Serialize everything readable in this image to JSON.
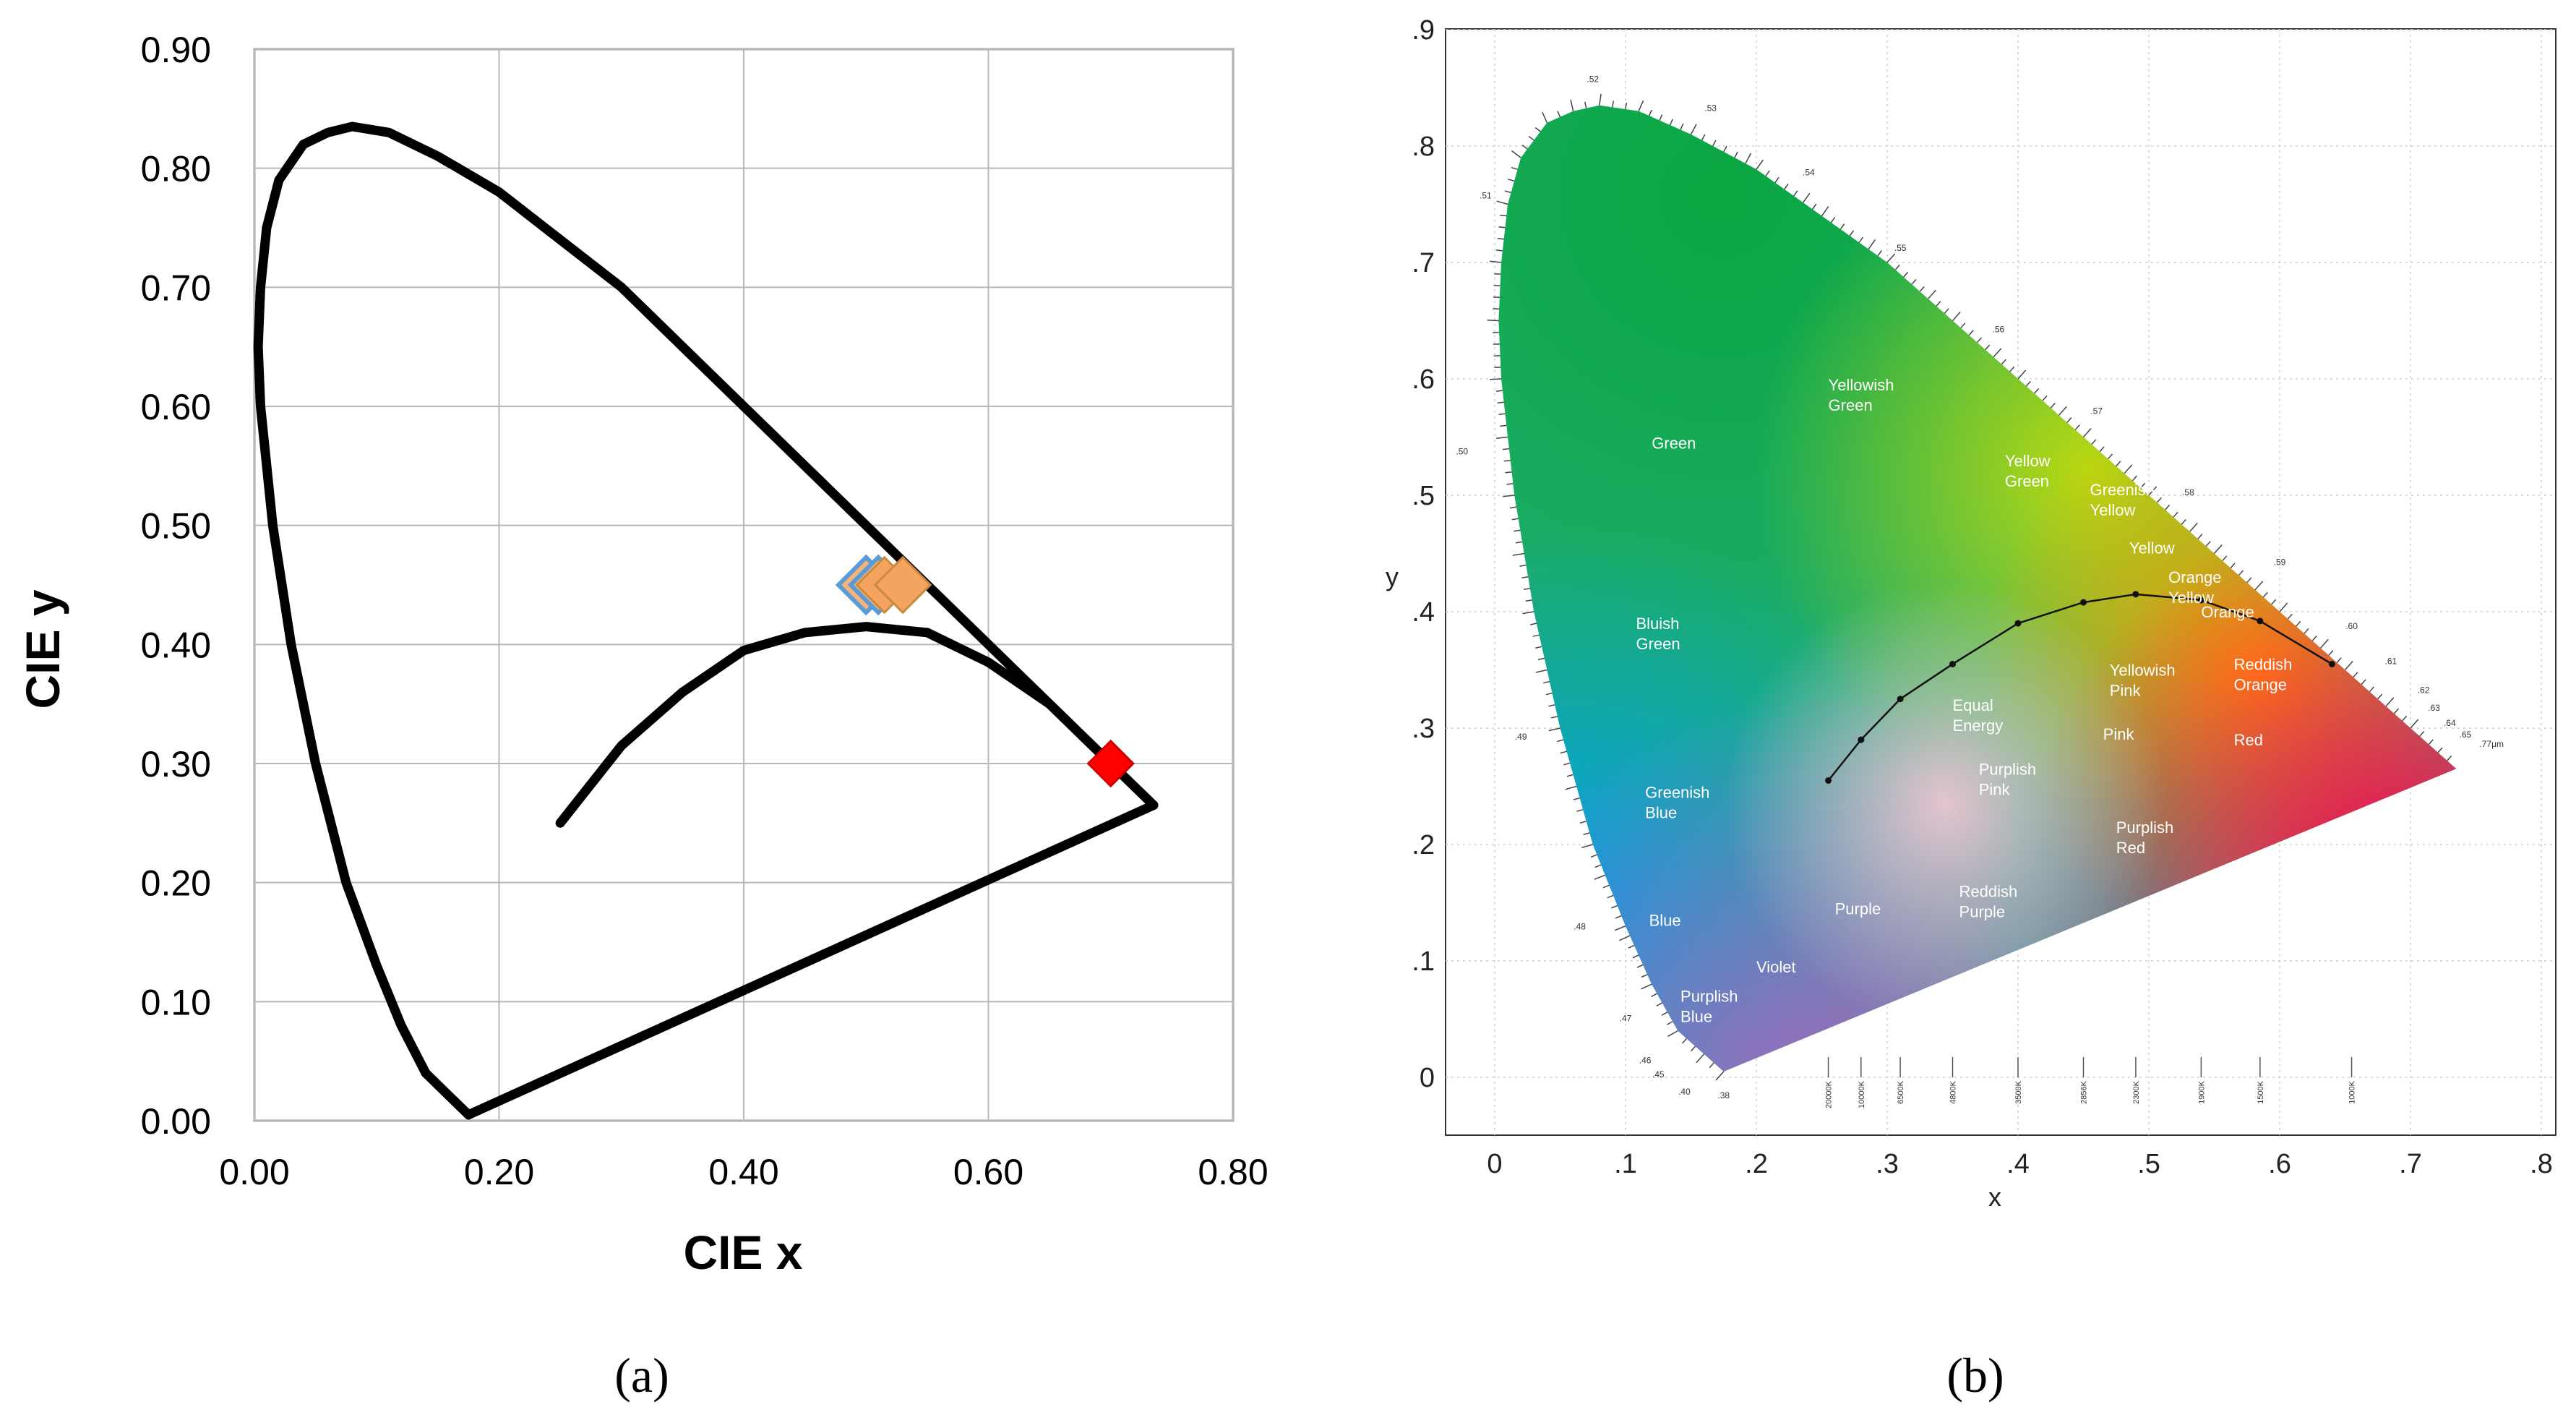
{
  "chart_data": [
    {
      "panel": "a",
      "type": "scatter",
      "xlabel": "CIE x",
      "ylabel": "CIE y",
      "xlim": [
        0,
        0.8
      ],
      "ylim": [
        0,
        0.9
      ],
      "x_ticks": [
        "0.00",
        "0.20",
        "0.40",
        "0.60",
        "0.80"
      ],
      "y_ticks": [
        "0.00",
        "0.10",
        "0.20",
        "0.30",
        "0.40",
        "0.50",
        "0.60",
        "0.70",
        "0.80",
        "0.90"
      ],
      "grid": true,
      "series": [
        {
          "name": "spectral locus",
          "kind": "line",
          "color": "#000000",
          "points": [
            [
              0.175,
              0.005
            ],
            [
              0.16,
              0.02
            ],
            [
              0.14,
              0.04
            ],
            [
              0.12,
              0.08
            ],
            [
              0.1,
              0.13
            ],
            [
              0.075,
              0.2
            ],
            [
              0.05,
              0.3
            ],
            [
              0.03,
              0.4
            ],
            [
              0.015,
              0.5
            ],
            [
              0.005,
              0.6
            ],
            [
              0.003,
              0.65
            ],
            [
              0.005,
              0.7
            ],
            [
              0.01,
              0.75
            ],
            [
              0.02,
              0.79
            ],
            [
              0.04,
              0.82
            ],
            [
              0.06,
              0.83
            ],
            [
              0.08,
              0.835
            ],
            [
              0.11,
              0.83
            ],
            [
              0.15,
              0.81
            ],
            [
              0.2,
              0.78
            ],
            [
              0.25,
              0.74
            ],
            [
              0.3,
              0.7
            ],
            [
              0.35,
              0.65
            ],
            [
              0.4,
              0.6
            ],
            [
              0.45,
              0.55
            ],
            [
              0.5,
              0.5
            ],
            [
              0.55,
              0.45
            ],
            [
              0.6,
              0.4
            ],
            [
              0.65,
              0.35
            ],
            [
              0.7,
              0.3
            ],
            [
              0.735,
              0.265
            ]
          ]
        },
        {
          "name": "line of purples",
          "kind": "line",
          "color": "#000000",
          "points": [
            [
              0.735,
              0.265
            ],
            [
              0.175,
              0.005
            ]
          ]
        },
        {
          "name": "Planckian locus",
          "kind": "line",
          "color": "#000000",
          "points": [
            [
              0.25,
              0.25
            ],
            [
              0.3,
              0.315
            ],
            [
              0.35,
              0.36
            ],
            [
              0.4,
              0.395
            ],
            [
              0.45,
              0.41
            ],
            [
              0.5,
              0.415
            ],
            [
              0.55,
              0.41
            ],
            [
              0.6,
              0.385
            ],
            [
              0.65,
              0.35
            ],
            [
              0.7,
              0.3
            ]
          ]
        },
        {
          "name": "measured points (blue outline)",
          "kind": "marker",
          "color": "#5b9bd5",
          "points": [
            [
              0.5,
              0.45
            ],
            [
              0.51,
              0.45
            ]
          ]
        },
        {
          "name": "measured points (orange)",
          "kind": "marker",
          "color": "#f4a460",
          "points": [
            [
              0.515,
              0.45
            ],
            [
              0.53,
              0.45
            ]
          ]
        },
        {
          "name": "red point",
          "kind": "marker",
          "color": "#ff0000",
          "points": [
            [
              0.7,
              0.3
            ]
          ]
        }
      ]
    },
    {
      "panel": "b",
      "type": "scatter",
      "xlabel": "x",
      "ylabel": "y",
      "xlim": [
        -0.04,
        0.8
      ],
      "ylim": [
        -0.05,
        0.9
      ],
      "x_ticks": [
        "0",
        ".1",
        ".2",
        ".3",
        ".4",
        ".5",
        ".6",
        ".7",
        ".8"
      ],
      "y_ticks": [
        "0",
        ".1",
        ".2",
        ".3",
        ".4",
        ".5",
        ".6",
        ".7",
        ".8",
        ".9"
      ],
      "grid": true,
      "regions": [
        {
          "label": [
            "Yellowish",
            "Green"
          ],
          "x": 0.255,
          "y": 0.59
        },
        {
          "label": [
            "Green"
          ],
          "x": 0.12,
          "y": 0.54
        },
        {
          "label": [
            "Yellow",
            "Green"
          ],
          "x": 0.39,
          "y": 0.525
        },
        {
          "label": [
            "Greenish",
            "Yellow"
          ],
          "x": 0.455,
          "y": 0.5
        },
        {
          "label": [
            "Yellow"
          ],
          "x": 0.485,
          "y": 0.45
        },
        {
          "label": [
            "Orange",
            "Yellow"
          ],
          "x": 0.515,
          "y": 0.425
        },
        {
          "label": [
            "Orange"
          ],
          "x": 0.54,
          "y": 0.395
        },
        {
          "label": [
            "Bluish",
            "Green"
          ],
          "x": 0.108,
          "y": 0.385
        },
        {
          "label": [
            "Yellowish",
            "Pink"
          ],
          "x": 0.47,
          "y": 0.345
        },
        {
          "label": [
            "Reddish",
            "Orange"
          ],
          "x": 0.565,
          "y": 0.35
        },
        {
          "label": [
            "Equal",
            "Energy"
          ],
          "x": 0.35,
          "y": 0.315
        },
        {
          "label": [
            "Pink"
          ],
          "x": 0.465,
          "y": 0.29
        },
        {
          "label": [
            "Red"
          ],
          "x": 0.565,
          "y": 0.285
        },
        {
          "label": [
            "Greenish",
            "Blue"
          ],
          "x": 0.115,
          "y": 0.24
        },
        {
          "label": [
            "Purplish",
            "Pink"
          ],
          "x": 0.37,
          "y": 0.26
        },
        {
          "label": [
            "Purplish",
            "Red"
          ],
          "x": 0.475,
          "y": 0.21
        },
        {
          "label": [
            "Reddish",
            "Purple"
          ],
          "x": 0.355,
          "y": 0.155
        },
        {
          "label": [
            "Purple"
          ],
          "x": 0.26,
          "y": 0.14
        },
        {
          "label": [
            "Blue"
          ],
          "x": 0.118,
          "y": 0.13
        },
        {
          "label": [
            "Violet"
          ],
          "x": 0.2,
          "y": 0.09
        },
        {
          "label": [
            "Purplish",
            "Blue"
          ],
          "x": 0.142,
          "y": 0.065
        }
      ],
      "wavelength_labels": [
        ".52",
        ".53",
        ".54",
        ".55",
        ".56",
        ".57",
        ".58",
        ".59",
        ".60",
        ".61",
        ".62",
        ".63",
        ".64",
        ".65",
        ".77μm",
        ".51",
        ".50",
        ".49",
        ".48",
        ".47",
        ".46",
        ".45",
        ".40",
        ".38"
      ],
      "cct_labels": [
        "20000K",
        "10000K",
        "6500K",
        "4800K",
        "3500K",
        "2856K",
        "2300K",
        "1900K",
        "1500K",
        "1000K"
      ]
    }
  ],
  "panel_labels": {
    "a": "(a)",
    "b": "(b)"
  }
}
